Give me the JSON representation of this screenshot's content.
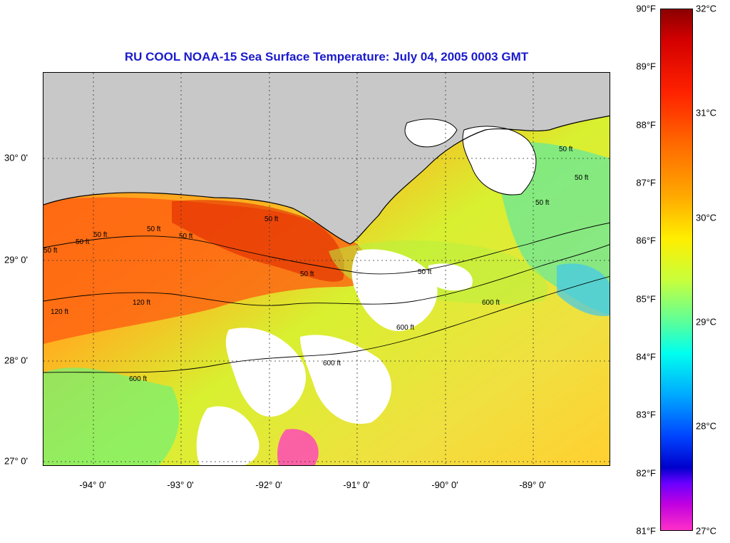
{
  "title": "RU COOL  NOAA-15  Sea Surface Temperature:  July 04, 2005 0003 GMT",
  "longitude_labels": [
    "-94° 0'",
    "-93° 0'",
    "-92° 0'",
    "-91° 0'",
    "-90° 0'",
    "-89° 0'"
  ],
  "latitude_labels": [
    "30° 0'",
    "29° 0'",
    "28° 0'",
    "27° 0'"
  ],
  "contour_labels": [
    "50 ft",
    "50 ft",
    "50 ft",
    "50 ft",
    "50 ft",
    "50 ft",
    "50 ft",
    "120 ft",
    "120 ft",
    "50 ft",
    "600 ft",
    "600 ft",
    "600 ft",
    "600 ft",
    "50 ft",
    "50 ft",
    "50 ft"
  ],
  "colorbar": {
    "fahrenheit_labels": [
      "90°F",
      "89°F",
      "88°F",
      "87°F",
      "86°F",
      "85°F",
      "84°F",
      "83°F",
      "82°F",
      "81°F"
    ],
    "celsius_labels": [
      "32°C",
      "31°C",
      "30°C",
      "29°C",
      "28°C",
      "27°C"
    ]
  },
  "colors": {
    "title": "#1a1acc",
    "land": "#c8c8c8",
    "cloud": "#ffffff"
  }
}
